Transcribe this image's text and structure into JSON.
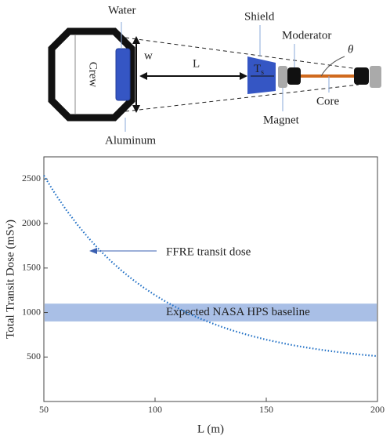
{
  "diagram": {
    "water": "Water",
    "crew": "Crew",
    "width": "w",
    "distance": "L",
    "shield": "Shield",
    "moderator": "Moderator",
    "angle": "θ",
    "shield_thickness": [
      "T",
      "s"
    ],
    "core": "Core",
    "magnet": "Magnet",
    "aluminum": "Aluminum"
  },
  "chart_data": {
    "type": "line",
    "xlabel": "L (m)",
    "ylabel": "Total Transit Dose (mSv)",
    "x": [
      50,
      55,
      60,
      65,
      70,
      75,
      80,
      85,
      90,
      95,
      100,
      105,
      110,
      115,
      120,
      125,
      130,
      135,
      140,
      145,
      150,
      155,
      160,
      165,
      170,
      175,
      180,
      185,
      190,
      195,
      200
    ],
    "series": [
      {
        "name": "FFRE transit dose",
        "color": "#1f6fc5",
        "values": [
          2540,
          2338,
          2155,
          1990,
          1840,
          1704,
          1581,
          1470,
          1369,
          1278,
          1195,
          1120,
          1052,
          991,
          935,
          885,
          839,
          797,
          760,
          726,
          695,
          668,
          642,
          619,
          599,
          580,
          563,
          548,
          534,
          521,
          510
        ]
      }
    ],
    "band": {
      "name": "Expected NASA HPS baseline",
      "color": "#a9bfe6",
      "range": [
        900,
        1100
      ]
    },
    "xlim": [
      50,
      200
    ],
    "xticks": [
      50,
      100,
      150,
      200
    ],
    "ylim": [
      0,
      2750
    ],
    "yticks": [
      500,
      1000,
      1500,
      2000,
      2500
    ]
  }
}
